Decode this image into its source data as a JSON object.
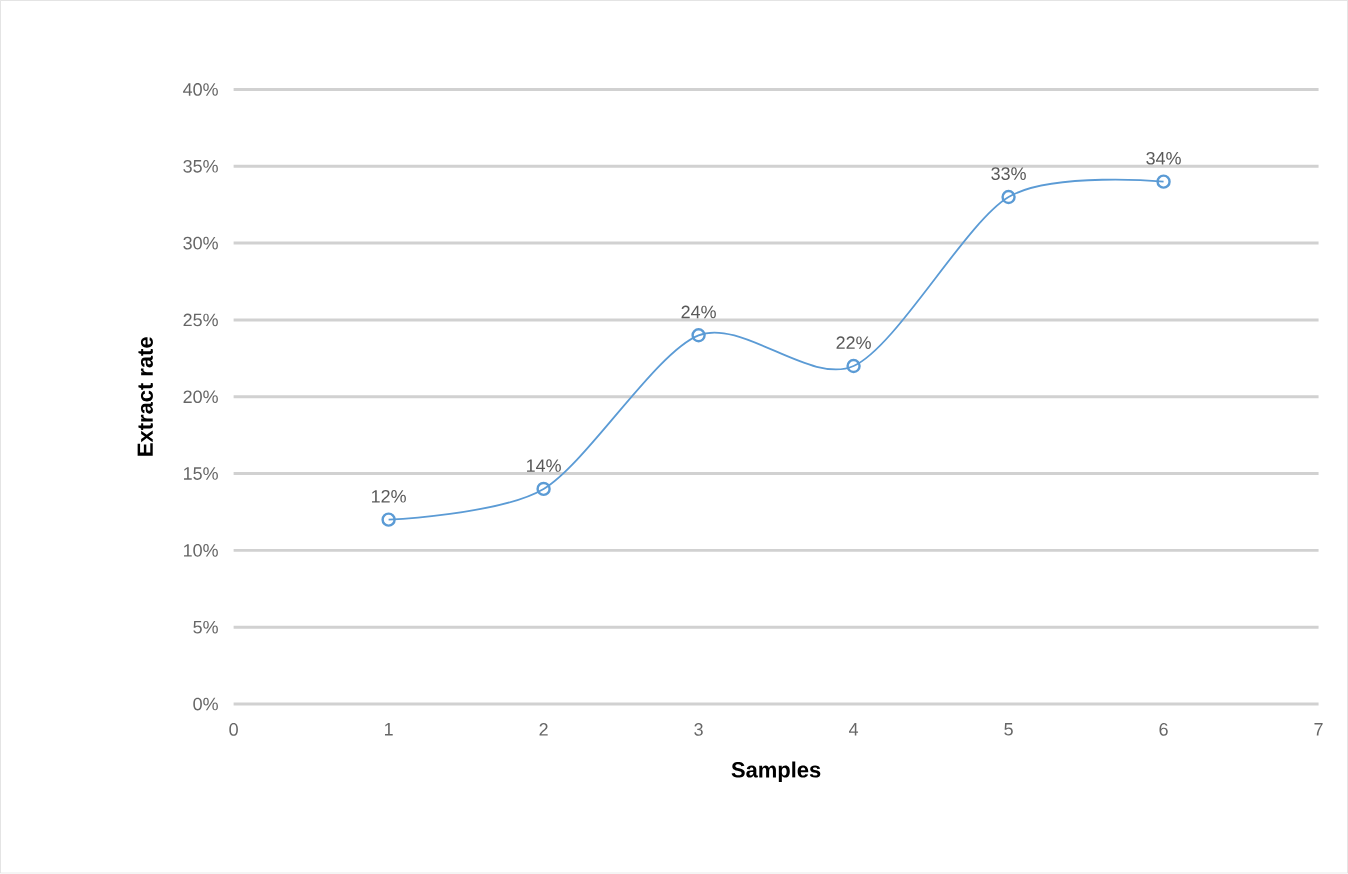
{
  "chart_data": {
    "type": "line",
    "xlabel": "Samples",
    "ylabel": "Extract rate",
    "x": [
      1,
      2,
      3,
      4,
      5,
      6
    ],
    "series": [
      {
        "color": "#5b9bd5",
        "values": [
          12,
          14,
          24,
          22,
          33,
          34
        ],
        "value_labels": [
          "12%",
          "14%",
          "24%",
          "22%",
          "33%",
          "34%"
        ]
      }
    ],
    "xlim": [
      0,
      7
    ],
    "xticks": [
      0,
      1,
      2,
      3,
      4,
      5,
      6,
      7
    ],
    "ylim": [
      0,
      40
    ],
    "yticks": [
      {
        "value": 0,
        "label": "0%"
      },
      {
        "value": 5,
        "label": "5%"
      },
      {
        "value": 10,
        "label": "10%"
      },
      {
        "value": 15,
        "label": "15%"
      },
      {
        "value": 20,
        "label": "20%"
      },
      {
        "value": 25,
        "label": "25%"
      },
      {
        "value": 30,
        "label": "30%"
      },
      {
        "value": 35,
        "label": "35%"
      },
      {
        "value": 40,
        "label": "40%"
      }
    ],
    "grid": "y",
    "marker": "circle",
    "line_style": "solid"
  }
}
